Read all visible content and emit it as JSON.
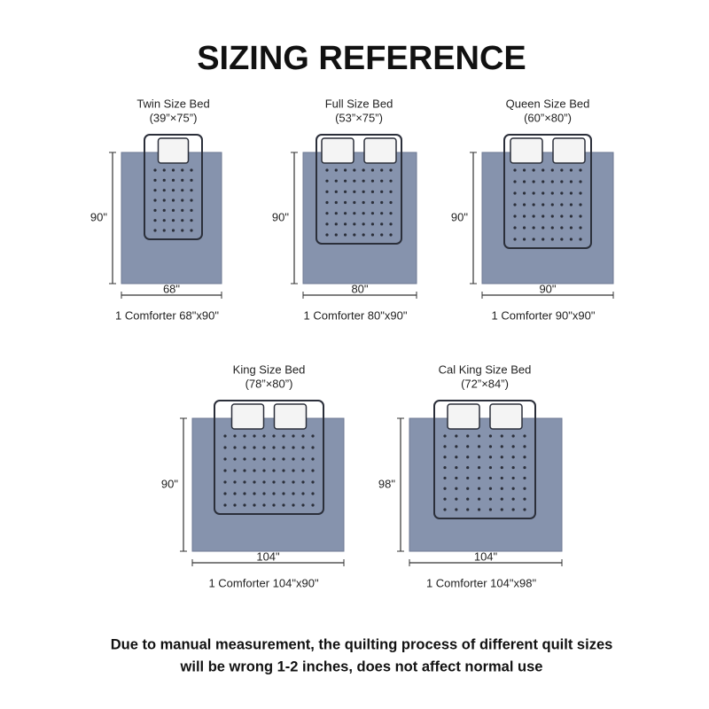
{
  "header": {
    "title": "SIZING REFERENCE"
  },
  "beds": [
    {
      "name": "Twin Size Bed",
      "size": "(39”×75”)",
      "height_label": "90\"",
      "width_label": "68\"",
      "caption": "1 Comforter 68\"x90\""
    },
    {
      "name": "Full Size Bed",
      "size": "(53”×75”)",
      "height_label": "90\"",
      "width_label": "80\"",
      "caption": "1 Comforter 80\"x90\""
    },
    {
      "name": "Queen Size Bed",
      "size": "(60”×80”)",
      "height_label": "90\"",
      "width_label": "90\"",
      "caption": "1 Comforter 90\"x90\""
    },
    {
      "name": "King Size Bed",
      "size": "(78”×80”)",
      "height_label": "90\"",
      "width_label": "104\"",
      "caption": "1 Comforter 104\"x90\""
    },
    {
      "name": "Cal King Size Bed",
      "size": "(72”×84”)",
      "height_label": "98\"",
      "width_label": "104\"",
      "caption": "1 Comforter 104\"x98\""
    }
  ],
  "footer": {
    "lines": [
      "Due to manual measurement, the quilting process of different quilt sizes",
      "will be wrong 1-2 inches, does not affect normal use"
    ]
  }
}
